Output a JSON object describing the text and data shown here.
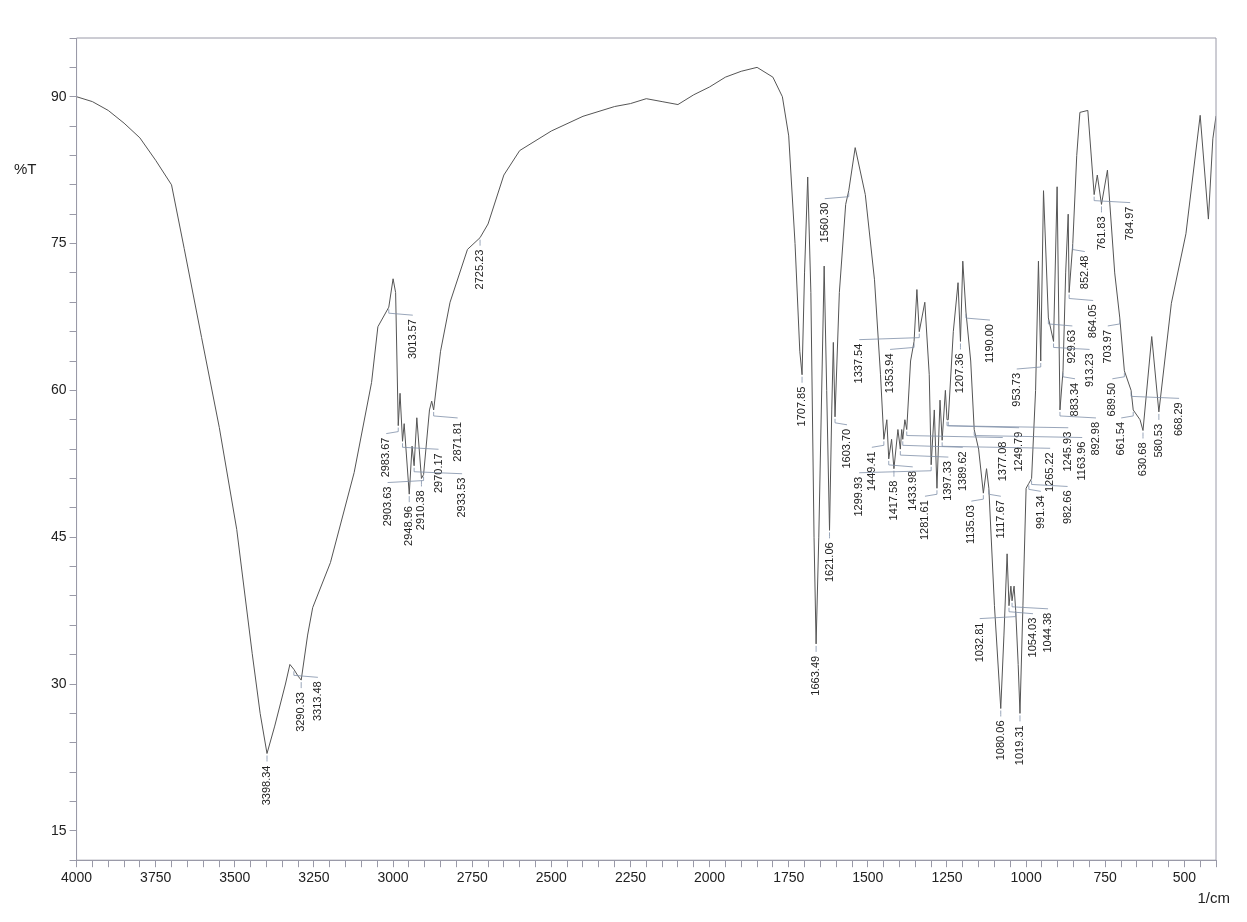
{
  "chart_data": {
    "type": "line",
    "xlabel": "1/cm",
    "ylabel": "%T",
    "color": "#555555",
    "marker": "none",
    "xlim": [
      4000,
      400
    ],
    "ylim": [
      12,
      96
    ],
    "xticks": [
      4000,
      {
        "value": 3950,
        "label": null
      },
      {
        "value": 3900,
        "label": null
      },
      {
        "value": 3850,
        "label": null
      },
      {
        "value": 3800,
        "label": null
      },
      3750,
      {
        "value": 3700,
        "label": null
      },
      {
        "value": 3650,
        "label": null
      },
      {
        "value": 3600,
        "label": null
      },
      {
        "value": 3550,
        "label": null
      },
      3500,
      {
        "value": 3450,
        "label": null
      },
      {
        "value": 3400,
        "label": null
      },
      {
        "value": 3350,
        "label": null
      },
      {
        "value": 3300,
        "label": null
      },
      3250,
      {
        "value": 3200,
        "label": null
      },
      {
        "value": 3150,
        "label": null
      },
      {
        "value": 3100,
        "label": null
      },
      {
        "value": 3050,
        "label": null
      },
      3000,
      {
        "value": 2950,
        "label": null
      },
      {
        "value": 2900,
        "label": null
      },
      {
        "value": 2850,
        "label": null
      },
      {
        "value": 2800,
        "label": null
      },
      2750,
      {
        "value": 2700,
        "label": null
      },
      {
        "value": 2650,
        "label": null
      },
      {
        "value": 2600,
        "label": null
      },
      {
        "value": 2550,
        "label": null
      },
      2500,
      {
        "value": 2450,
        "label": null
      },
      {
        "value": 2400,
        "label": null
      },
      {
        "value": 2350,
        "label": null
      },
      {
        "value": 2300,
        "label": null
      },
      2250,
      {
        "value": 2200,
        "label": null
      },
      {
        "value": 2150,
        "label": null
      },
      {
        "value": 2100,
        "label": null
      },
      {
        "value": 2050,
        "label": null
      },
      2000,
      {
        "value": 1950,
        "label": null
      },
      {
        "value": 1900,
        "label": null
      },
      {
        "value": 1850,
        "label": null
      },
      {
        "value": 1800,
        "label": null
      },
      1750,
      {
        "value": 1700,
        "label": null
      },
      {
        "value": 1650,
        "label": null
      },
      {
        "value": 1600,
        "label": null
      },
      {
        "value": 1550,
        "label": null
      },
      1500,
      {
        "value": 1450,
        "label": null
      },
      {
        "value": 1400,
        "label": null
      },
      {
        "value": 1350,
        "label": null
      },
      {
        "value": 1300,
        "label": null
      },
      1250,
      {
        "value": 1200,
        "label": null
      },
      {
        "value": 1150,
        "label": null
      },
      {
        "value": 1100,
        "label": null
      },
      {
        "value": 1050,
        "label": null
      },
      1000,
      {
        "value": 950,
        "label": null
      },
      {
        "value": 900,
        "label": null
      },
      {
        "value": 850,
        "label": null
      },
      {
        "value": 800,
        "label": null
      },
      750,
      {
        "value": 700,
        "label": null
      },
      {
        "value": 650,
        "label": null
      },
      {
        "value": 600,
        "label": null
      },
      {
        "value": 550,
        "label": null
      },
      500,
      {
        "value": 450,
        "label": null
      },
      {
        "value": 400,
        "label": null
      }
    ],
    "yticks": [
      {
        "value": 12,
        "label": null
      },
      15,
      {
        "value": 18,
        "label": null
      },
      {
        "value": 21,
        "label": null
      },
      {
        "value": 24,
        "label": null
      },
      {
        "value": 27,
        "label": null
      },
      30,
      {
        "value": 33,
        "label": null
      },
      {
        "value": 36,
        "label": null
      },
      {
        "value": 39,
        "label": null
      },
      {
        "value": 42,
        "label": null
      },
      45,
      {
        "value": 48,
        "label": null
      },
      {
        "value": 51,
        "label": null
      },
      {
        "value": 54,
        "label": null
      },
      {
        "value": 57,
        "label": null
      },
      60,
      {
        "value": 63,
        "label": null
      },
      {
        "value": 66,
        "label": null
      },
      {
        "value": 69,
        "label": null
      },
      {
        "value": 72,
        "label": null
      },
      75,
      {
        "value": 78,
        "label": null
      },
      {
        "value": 81,
        "label": null
      },
      {
        "value": 84,
        "label": null
      },
      {
        "value": 87,
        "label": null
      },
      90,
      {
        "value": 93,
        "label": null
      },
      {
        "value": 96,
        "label": null
      }
    ],
    "x": [
      4000,
      3950,
      3900,
      3850,
      3800,
      3750,
      3700,
      3660,
      3605,
      3549,
      3494,
      3445,
      3420,
      3398.34,
      3374,
      3340,
      3326,
      3313.48,
      3300,
      3290.33,
      3270,
      3254,
      3198,
      3123,
      3068,
      3048,
      3013.57,
      3000,
      2992,
      2983.67,
      2978,
      2970.17,
      2965,
      2948.96,
      2940,
      2933.53,
      2925,
      2910.38,
      2903.63,
      2885,
      2878,
      2871.81,
      2850,
      2820,
      2765,
      2725.23,
      2700,
      2650,
      2600,
      2500,
      2400,
      2300,
      2250,
      2200,
      2150,
      2100,
      2050,
      2000,
      1950,
      1900,
      1850,
      1800,
      1770,
      1750,
      1730,
      1715,
      1707.85,
      1700,
      1690,
      1680,
      1670,
      1663.49,
      1655,
      1638,
      1630,
      1621.06,
      1614,
      1609,
      1603.7,
      1590,
      1570,
      1560.3,
      1540,
      1508,
      1479,
      1460,
      1449.41,
      1440,
      1433.98,
      1425,
      1417.58,
      1405,
      1397.33,
      1393,
      1389.62,
      1383,
      1377.08,
      1365,
      1353.94,
      1345,
      1337.54,
      1320,
      1306,
      1299.93,
      1290,
      1281.61,
      1272,
      1265.22,
      1255,
      1249.79,
      1245.93,
      1230,
      1215,
      1207.36,
      1200,
      1190,
      1175,
      1163.96,
      1150,
      1135.03,
      1125,
      1117.67,
      1100,
      1080.06,
      1070,
      1060,
      1054.03,
      1048,
      1044.38,
      1038,
      1032.81,
      1025,
      1019.31,
      1010,
      1000,
      991.34,
      982.66,
      970,
      961,
      953.73,
      945,
      929.63,
      913.23,
      902,
      892.98,
      883.34,
      875,
      867,
      864.05,
      852.48,
      840,
      830,
      805,
      784.97,
      775,
      761.83,
      743,
      720,
      703.97,
      689.5,
      668.29,
      661.54,
      640,
      630.68,
      603,
      580.53,
      541,
      495,
      450,
      424,
      410,
      400
    ],
    "values": [
      90,
      89.5,
      88.6,
      87.3,
      85.8,
      83.5,
      81,
      74.5,
      65.4,
      56.2,
      45.8,
      33.1,
      27,
      22.9,
      25.7,
      30,
      32,
      31.5,
      30.8,
      30.4,
      35,
      37.8,
      42.4,
      51.6,
      60.8,
      66.5,
      68.5,
      71.4,
      70,
      56.4,
      59.7,
      54.8,
      56.6,
      49.4,
      54.3,
      52.3,
      57.2,
      51,
      51.4,
      58,
      58.9,
      58,
      64,
      69,
      74.4,
      75.6,
      77,
      82,
      84.5,
      86.5,
      88,
      89,
      89.3,
      89.8,
      89.5,
      89.2,
      90.2,
      91,
      92,
      92.6,
      93,
      92,
      90,
      86,
      75,
      64,
      61.6,
      72,
      81.8,
      70,
      45,
      34.1,
      45,
      72.7,
      60,
      45.7,
      58,
      64.9,
      57.3,
      70,
      79,
      80.4,
      84.8,
      80,
      71.3,
      61.6,
      55,
      57,
      53,
      55,
      52,
      56,
      54,
      56,
      55,
      57,
      56,
      63,
      65,
      70.3,
      66,
      69,
      61.6,
      52.4,
      58,
      50,
      59,
      54.9,
      60,
      57,
      57,
      66,
      71,
      65,
      73.2,
      68,
      63,
      56,
      54,
      49.5,
      52,
      50,
      38,
      27.5,
      35,
      43.3,
      38,
      40,
      38.5,
      40,
      37.5,
      32,
      27,
      38,
      50,
      50.5,
      51,
      60,
      73.2,
      63,
      80.4,
      67.4,
      65,
      80.8,
      58,
      62,
      72,
      78,
      70,
      75,
      84,
      88.4,
      88.6,
      80,
      82,
      79,
      82.5,
      72,
      67.4,
      62,
      60,
      58,
      57,
      55.9,
      65.5,
      57.8,
      68.9,
      76,
      88.1,
      77.5,
      85.7,
      88
    ],
    "annotations": [
      {
        "text": "3398.34",
        "x": 3398.34,
        "y": 22.9
      },
      {
        "text": "3313.48",
        "x": 3313.48,
        "y": 31.5
      },
      {
        "text": "3290.33",
        "x": 3290.33,
        "y": 30.4
      },
      {
        "text": "3013.57",
        "x": 3013.57,
        "y": 68.5
      },
      {
        "text": "2983.67",
        "x": 2983.67,
        "y": 56.4
      },
      {
        "text": "2970.17",
        "x": 2970.17,
        "y": 54.8
      },
      {
        "text": "2948.96",
        "x": 2948.96,
        "y": 49.4
      },
      {
        "text": "2933.53",
        "x": 2933.53,
        "y": 52.3
      },
      {
        "text": "2910.38",
        "x": 2910.38,
        "y": 51
      },
      {
        "text": "2903.63",
        "x": 2903.63,
        "y": 51.4
      },
      {
        "text": "2871.81",
        "x": 2871.81,
        "y": 58
      },
      {
        "text": "2725.23",
        "x": 2725.23,
        "y": 75.6
      },
      {
        "text": "1707.85",
        "x": 1707.85,
        "y": 61.6
      },
      {
        "text": "1663.49",
        "x": 1663.49,
        "y": 34.1
      },
      {
        "text": "1621.06",
        "x": 1621.06,
        "y": 45.7
      },
      {
        "text": "1603.70",
        "x": 1603.7,
        "y": 57.3
      },
      {
        "text": "1560.30",
        "x": 1560.3,
        "y": 80.4
      },
      {
        "text": "1449.41",
        "x": 1449.41,
        "y": 55
      },
      {
        "text": "1433.98",
        "x": 1433.98,
        "y": 53
      },
      {
        "text": "1417.58",
        "x": 1417.58,
        "y": 52
      },
      {
        "text": "1397.33",
        "x": 1397.33,
        "y": 54
      },
      {
        "text": "1389.62",
        "x": 1389.62,
        "y": 55
      },
      {
        "text": "1377.08",
        "x": 1377.08,
        "y": 56
      },
      {
        "text": "1353.94",
        "x": 1353.94,
        "y": 65
      },
      {
        "text": "1337.54",
        "x": 1337.54,
        "y": 66
      },
      {
        "text": "1299.93",
        "x": 1299.93,
        "y": 52.4
      },
      {
        "text": "1281.61",
        "x": 1281.61,
        "y": 50
      },
      {
        "text": "1265.22",
        "x": 1265.22,
        "y": 54.9
      },
      {
        "text": "1249.79",
        "x": 1249.79,
        "y": 57
      },
      {
        "text": "1245.93",
        "x": 1245.93,
        "y": 57
      },
      {
        "text": "1207.36",
        "x": 1207.36,
        "y": 65
      },
      {
        "text": "1190.00",
        "x": 1190,
        "y": 68
      },
      {
        "text": "1163.96",
        "x": 1163.96,
        "y": 56
      },
      {
        "text": "1135.03",
        "x": 1135.03,
        "y": 49.5
      },
      {
        "text": "1117.67",
        "x": 1117.67,
        "y": 50
      },
      {
        "text": "1080.06",
        "x": 1080.06,
        "y": 27.5
      },
      {
        "text": "1054.03",
        "x": 1054.03,
        "y": 38
      },
      {
        "text": "1044.38",
        "x": 1044.38,
        "y": 38.5
      },
      {
        "text": "1032.81",
        "x": 1032.81,
        "y": 37.5
      },
      {
        "text": "1019.31",
        "x": 1019.31,
        "y": 27
      },
      {
        "text": "991.34",
        "x": 991.34,
        "y": 50.5
      },
      {
        "text": "982.66",
        "x": 982.66,
        "y": 51
      },
      {
        "text": "953.73",
        "x": 953.73,
        "y": 63
      },
      {
        "text": "929.63",
        "x": 929.63,
        "y": 67.4
      },
      {
        "text": "913.23",
        "x": 913.23,
        "y": 65
      },
      {
        "text": "892.98",
        "x": 892.98,
        "y": 58
      },
      {
        "text": "883.34",
        "x": 883.34,
        "y": 62
      },
      {
        "text": "864.05",
        "x": 864.05,
        "y": 70
      },
      {
        "text": "852.48",
        "x": 852.48,
        "y": 75
      },
      {
        "text": "784.97",
        "x": 784.97,
        "y": 80
      },
      {
        "text": "761.83",
        "x": 761.83,
        "y": 79
      },
      {
        "text": "703.97",
        "x": 703.97,
        "y": 67.4
      },
      {
        "text": "689.50",
        "x": 689.5,
        "y": 62
      },
      {
        "text": "668.29",
        "x": 668.29,
        "y": 60
      },
      {
        "text": "661.54",
        "x": 661.54,
        "y": 58
      },
      {
        "text": "630.68",
        "x": 630.68,
        "y": 55.9
      },
      {
        "text": "580.53",
        "x": 580.53,
        "y": 57.8
      }
    ]
  }
}
